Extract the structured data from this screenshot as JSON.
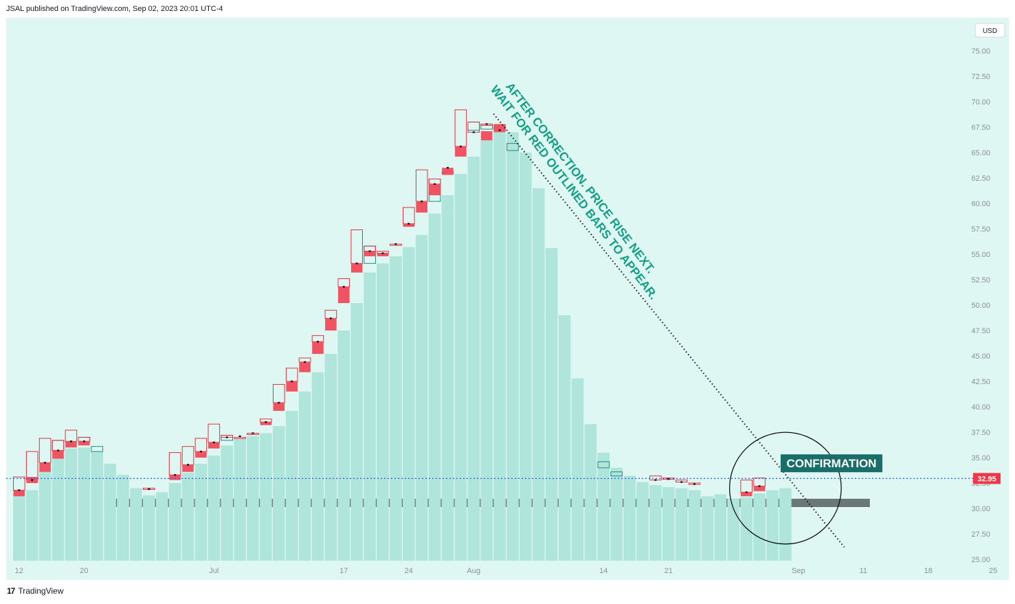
{
  "header": {
    "published": "JSAL published on TradingView.com, Sep 02, 2023 20:01 UTC-4"
  },
  "footer": {
    "brand": "TradingView",
    "logo": "17"
  },
  "currency": "USD",
  "colors": {
    "background": "#dff7f2",
    "bar": "#b0e5dc",
    "red": "#f05361",
    "red_outline": "#e0303c",
    "teal_outline": "#1f8a78",
    "level_line": "#2962ff",
    "price_label_bg": "#f23645",
    "zone": "#5c6b69",
    "annotation": "#14a085",
    "confirm_bg": "#1a6e69"
  },
  "annotations": {
    "main": [
      "AFTER CORRECTION. PRICE RISE NEXT.",
      "WAIT FOR RED OUTLINED BARS TO APPEAR."
    ],
    "confirmation": "CONFIRMATION"
  },
  "chart_data": {
    "type": "bar",
    "ylim": [
      24,
      77
    ],
    "y_ticks": [
      "75.00",
      "72.50",
      "70.00",
      "67.50",
      "65.00",
      "62.50",
      "60.00",
      "57.50",
      "55.00",
      "52.50",
      "50.00",
      "47.50",
      "45.00",
      "42.50",
      "40.00",
      "37.50",
      "35.00",
      "32.50",
      "30.00",
      "27.50",
      "25.00"
    ],
    "x_ticks": [
      {
        "label": "12",
        "index": 0
      },
      {
        "label": "20",
        "index": 5
      },
      {
        "label": "Jul",
        "index": 15
      },
      {
        "label": "17",
        "index": 25
      },
      {
        "label": "24",
        "index": 30
      },
      {
        "label": "Aug",
        "index": 35
      },
      {
        "label": "14",
        "index": 45
      },
      {
        "label": "21",
        "index": 50
      },
      {
        "label": "Sep",
        "index": 60
      },
      {
        "label": "11",
        "index": 65
      },
      {
        "label": "18",
        "index": 70
      },
      {
        "label": "25",
        "index": 75
      }
    ],
    "current_price": 32.95,
    "current_price_label": "32.95",
    "support_zone": [
      30.1,
      31.0
    ],
    "support_zone_span": [
      7,
      66
    ],
    "trendline": {
      "from": [
        37,
        68.8
      ],
      "to": [
        64,
        26.2
      ]
    },
    "circle": {
      "center": [
        59,
        32
      ],
      "radius_days": 4.3
    },
    "series": [
      {
        "name": "base",
        "values": [
          31.2,
          31.8,
          33.8,
          35.1,
          35.9,
          36.0,
          35.6,
          34.4,
          33.3,
          32.0,
          31.3,
          31.6,
          32.5,
          33.5,
          34.4,
          35.2,
          36.2,
          36.8,
          37.1,
          37.4,
          38.1,
          39.6,
          41.5,
          43.4,
          45.2,
          47.5,
          50.2,
          53.2,
          54.1,
          54.8,
          55.7,
          56.9,
          59.0,
          60.8,
          62.9,
          64.6,
          66.2,
          67.1,
          67.0,
          65.0,
          61.5,
          55.6,
          49.0,
          42.8,
          38.3,
          35.5,
          34.0,
          33.2,
          32.6,
          32.3,
          32.1,
          32.0,
          31.8,
          31.2,
          31.4,
          31.0,
          31.1,
          31.5,
          31.8,
          32.0
        ]
      },
      {
        "name": "close",
        "values": [
          31.8,
          32.8,
          34.5,
          35.7,
          36.6,
          36.6,
          null,
          null,
          null,
          null,
          31.9,
          null,
          33.3,
          34.3,
          35.6,
          36.5,
          37.0,
          37.1,
          37.4,
          38.5,
          40.4,
          42.5,
          44.4,
          46.4,
          48.7,
          51.8,
          54.1,
          55.3,
          55.1,
          56.0,
          58.0,
          60.2,
          61.9,
          63.5,
          65.6,
          67.0,
          67.8,
          67.2,
          null,
          null,
          null,
          null,
          null,
          null,
          null,
          null,
          null,
          null,
          null,
          32.8,
          32.9,
          32.6,
          32.4,
          null,
          null,
          null,
          31.6,
          32.2,
          null,
          null
        ]
      },
      {
        "name": "high",
        "values": [
          33.1,
          35.6,
          36.9,
          36.7,
          37.7,
          37.0,
          36.1,
          null,
          null,
          null,
          32.0,
          null,
          35.5,
          36.1,
          36.9,
          38.3,
          37.2,
          37.0,
          37.4,
          38.8,
          42.2,
          43.8,
          44.8,
          47.0,
          49.5,
          52.6,
          57.4,
          55.8,
          55.3,
          56.0,
          59.6,
          63.3,
          62.4,
          63.1,
          69.2,
          68.0,
          67.8,
          67.7,
          65.9,
          null,
          null,
          null,
          null,
          null,
          null,
          34.6,
          33.6,
          null,
          null,
          33.2,
          33.0,
          32.8,
          32.5,
          null,
          null,
          null,
          32.8,
          33.0,
          32.8,
          null
        ]
      },
      {
        "name": "red_bar",
        "values": [
          [
            31.2,
            31.8
          ],
          [
            32.5,
            33.1
          ],
          [
            33.6,
            34.5
          ],
          [
            34.9,
            35.7
          ],
          [
            36.0,
            36.6
          ],
          [
            36.2,
            36.6
          ],
          null,
          null,
          null,
          null,
          null,
          null,
          [
            32.8,
            33.3
          ],
          [
            33.6,
            34.3
          ],
          [
            35.0,
            35.6
          ],
          [
            35.9,
            36.5
          ],
          [
            null,
            null
          ],
          null,
          null,
          [
            38.2,
            38.5
          ],
          [
            39.6,
            40.4
          ],
          [
            41.5,
            42.5
          ],
          [
            43.4,
            44.4
          ],
          [
            45.2,
            46.4
          ],
          [
            47.5,
            48.7
          ],
          [
            50.2,
            51.8
          ],
          [
            53.2,
            54.1
          ],
          [
            54.8,
            55.3
          ],
          [
            54.8,
            55.1
          ],
          null,
          [
            57.7,
            58.0
          ],
          [
            59.1,
            60.2
          ],
          [
            60.8,
            61.9
          ],
          [
            62.8,
            63.5
          ],
          [
            64.6,
            65.6
          ],
          null,
          [
            66.2,
            67.1
          ],
          [
            67.0,
            67.8
          ],
          null,
          null,
          null,
          null,
          null,
          null,
          null,
          null,
          null,
          null,
          null,
          null,
          null,
          null,
          null,
          null,
          null,
          null,
          [
            31.2,
            31.6
          ],
          [
            31.7,
            32.2
          ],
          null,
          null
        ]
      },
      {
        "name": "teal_outline",
        "values": [
          null,
          null,
          null,
          [
            35.7,
            36.7
          ],
          null,
          [
            36.6,
            37.0
          ],
          [
            35.6,
            36.1
          ],
          null,
          null,
          null,
          null,
          null,
          null,
          null,
          null,
          null,
          [
            36.7,
            37.2
          ],
          null,
          null,
          null,
          null,
          null,
          null,
          null,
          null,
          null,
          null,
          [
            54.1,
            55.8
          ],
          null,
          null,
          null,
          null,
          [
            60.2,
            62.4
          ],
          null,
          null,
          [
            67.2,
            68.0
          ],
          [
            67.3,
            67.8
          ],
          [
            67.2,
            67.7
          ],
          [
            65.2,
            65.9
          ],
          null,
          null,
          null,
          null,
          null,
          null,
          [
            34.0,
            34.6
          ],
          [
            33.2,
            33.6
          ],
          null,
          null,
          null,
          null,
          null,
          null,
          null,
          null,
          null,
          null,
          null,
          null,
          null
        ]
      }
    ]
  }
}
